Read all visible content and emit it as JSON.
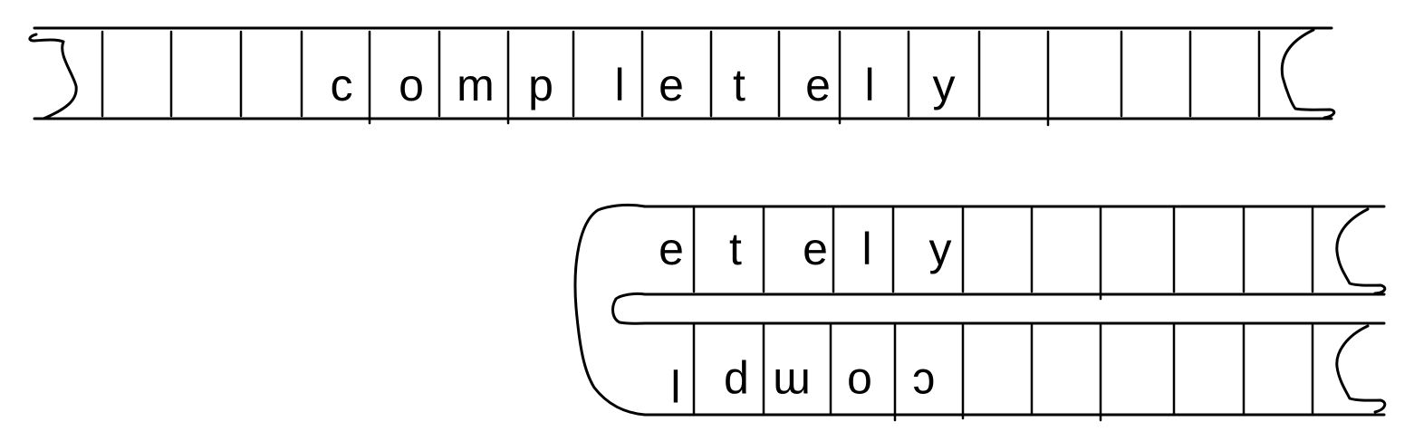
{
  "diagram": {
    "top_tape": {
      "letters": [
        "c",
        "o",
        "m",
        "p",
        "l",
        "e",
        "t",
        "e",
        "l",
        "y"
      ]
    },
    "folded_tape": {
      "upper_letters": [
        "e",
        "t",
        "e",
        "l",
        "y"
      ],
      "lower_letters_mirrored": [
        "l",
        "p",
        "m",
        "o",
        "c"
      ]
    }
  }
}
